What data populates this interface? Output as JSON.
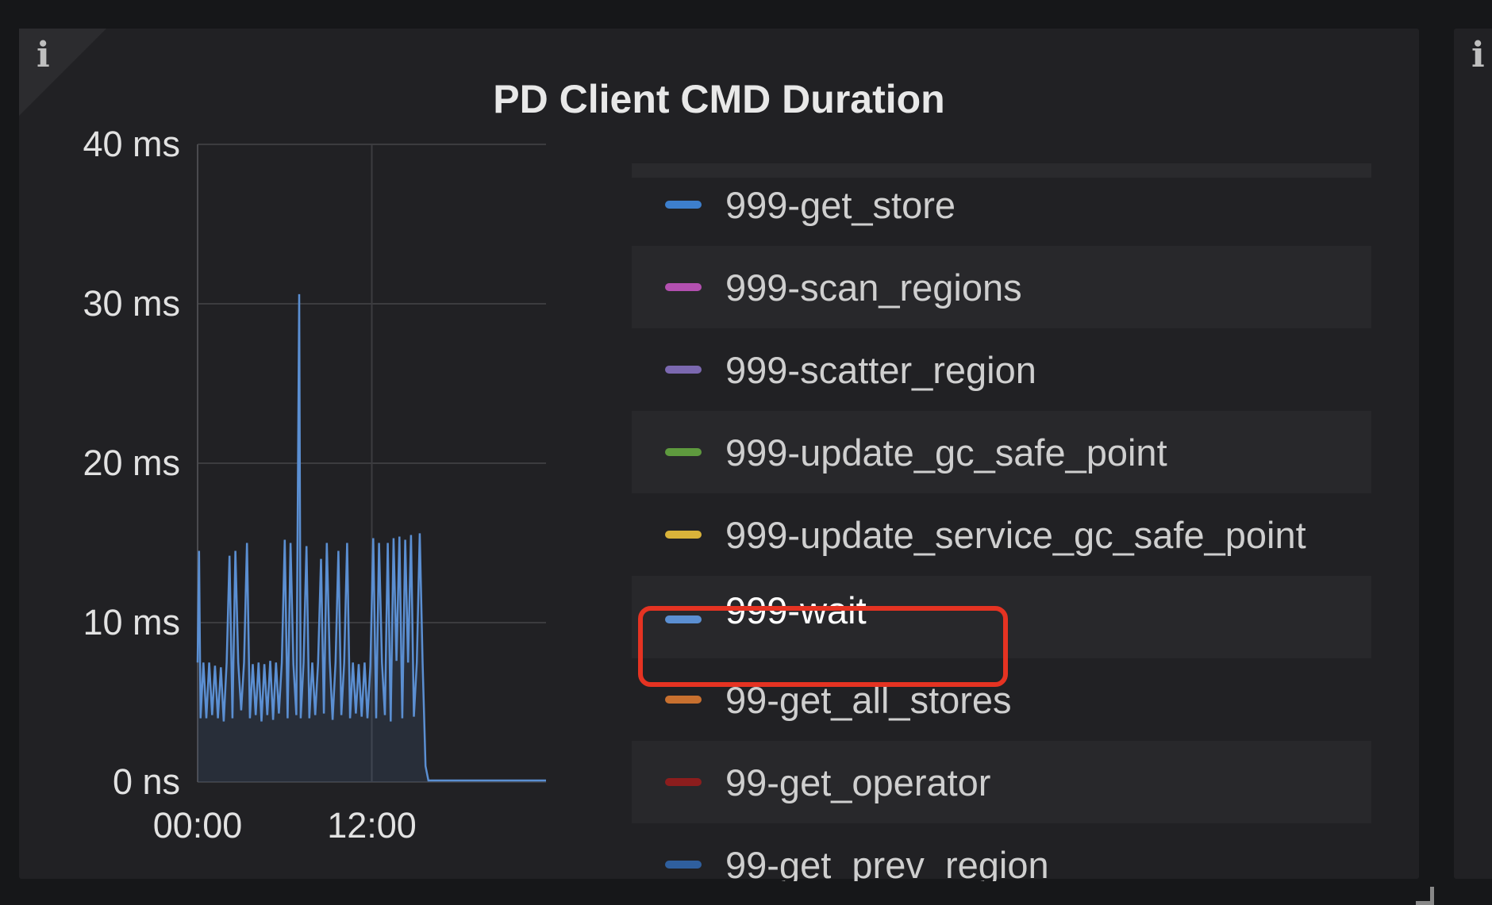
{
  "panel": {
    "title": "PD Client CMD Duration",
    "info_icon": "i",
    "next_panel_info_icon": "i"
  },
  "chart_data": {
    "type": "line",
    "title": "PD Client CMD Duration",
    "y_ticks": [
      "0 ns",
      "10 ms",
      "20 ms",
      "30 ms",
      "40 ms"
    ],
    "y_tick_values": [
      0,
      10,
      20,
      30,
      40
    ],
    "ylim": [
      0,
      40
    ],
    "y_unit": "ms",
    "x_ticks": [
      "00:00",
      "12:00"
    ],
    "x_tick_values": [
      0,
      12
    ],
    "xlim": [
      0,
      24
    ],
    "x_unit": "hours",
    "grid": true,
    "legend_placement": "right",
    "series": [
      {
        "name": "999-get_store",
        "color": "#3d7fcd"
      },
      {
        "name": "999-scan_regions",
        "color": "#b350b0"
      },
      {
        "name": "999-scatter_region",
        "color": "#7b68b0"
      },
      {
        "name": "999-update_gc_safe_point",
        "color": "#5e9a3e"
      },
      {
        "name": "999-update_service_gc_safe_point",
        "color": "#d9b33a"
      },
      {
        "name": "999-wait",
        "color": "#5b8fd2",
        "highlighted": true,
        "points": [
          [
            0.0,
            7.5
          ],
          [
            0.1,
            14.5
          ],
          [
            0.2,
            4
          ],
          [
            0.4,
            7.5
          ],
          [
            0.6,
            4
          ],
          [
            0.8,
            7.5
          ],
          [
            1.0,
            4.2
          ],
          [
            1.2,
            7.3
          ],
          [
            1.4,
            4
          ],
          [
            1.6,
            7.2
          ],
          [
            1.8,
            3.8
          ],
          [
            2.0,
            7.5
          ],
          [
            2.2,
            14.2
          ],
          [
            2.4,
            4
          ],
          [
            2.6,
            14.5
          ],
          [
            2.8,
            7.5
          ],
          [
            3.0,
            4.5
          ],
          [
            3.2,
            7.5
          ],
          [
            3.4,
            15
          ],
          [
            3.6,
            4
          ],
          [
            3.8,
            7.4
          ],
          [
            4.0,
            4.2
          ],
          [
            4.2,
            7.5
          ],
          [
            4.4,
            3.8
          ],
          [
            4.6,
            7.4
          ],
          [
            4.8,
            4.2
          ],
          [
            5.0,
            7.6
          ],
          [
            5.2,
            3.9
          ],
          [
            5.4,
            7.5
          ],
          [
            5.6,
            4.3
          ],
          [
            5.8,
            7.5
          ],
          [
            6.0,
            15.2
          ],
          [
            6.2,
            4
          ],
          [
            6.4,
            15
          ],
          [
            6.6,
            7.4
          ],
          [
            6.8,
            4.2
          ],
          [
            7.0,
            30.6
          ],
          [
            7.1,
            4
          ],
          [
            7.3,
            7.5
          ],
          [
            7.5,
            14.8
          ],
          [
            7.7,
            4
          ],
          [
            7.9,
            7.5
          ],
          [
            8.1,
            4.2
          ],
          [
            8.3,
            7.5
          ],
          [
            8.5,
            14
          ],
          [
            8.7,
            4.3
          ],
          [
            8.9,
            15
          ],
          [
            9.1,
            7.6
          ],
          [
            9.3,
            3.9
          ],
          [
            9.5,
            7.5
          ],
          [
            9.7,
            14.5
          ],
          [
            9.9,
            4.2
          ],
          [
            10.1,
            7.5
          ],
          [
            10.3,
            15
          ],
          [
            10.5,
            4
          ],
          [
            10.7,
            7.5
          ],
          [
            10.9,
            4.3
          ],
          [
            11.1,
            7.4
          ],
          [
            11.3,
            4.1
          ],
          [
            11.5,
            7.5
          ],
          [
            11.7,
            4
          ],
          [
            11.9,
            7.3
          ],
          [
            12.1,
            15.3
          ],
          [
            12.3,
            4
          ],
          [
            12.5,
            15
          ],
          [
            12.7,
            7.5
          ],
          [
            12.9,
            4.2
          ],
          [
            13.1,
            15
          ],
          [
            13.3,
            3.8
          ],
          [
            13.5,
            15.3
          ],
          [
            13.7,
            7.6
          ],
          [
            13.9,
            15.4
          ],
          [
            14.1,
            4
          ],
          [
            14.3,
            15.2
          ],
          [
            14.5,
            7.5
          ],
          [
            14.7,
            15.5
          ],
          [
            14.9,
            4.1
          ],
          [
            15.1,
            7.5
          ],
          [
            15.3,
            15.6
          ],
          [
            15.5,
            7.5
          ],
          [
            15.7,
            1
          ],
          [
            15.9,
            0.1
          ],
          [
            16.5,
            0.1
          ],
          [
            24,
            0.1
          ]
        ]
      },
      {
        "name": "99-get_all_stores",
        "color": "#c8702f"
      },
      {
        "name": "99-get_operator",
        "color": "#8c1d1d"
      },
      {
        "name": "99-get_prev_region",
        "color": "#2f5f9e"
      }
    ]
  }
}
